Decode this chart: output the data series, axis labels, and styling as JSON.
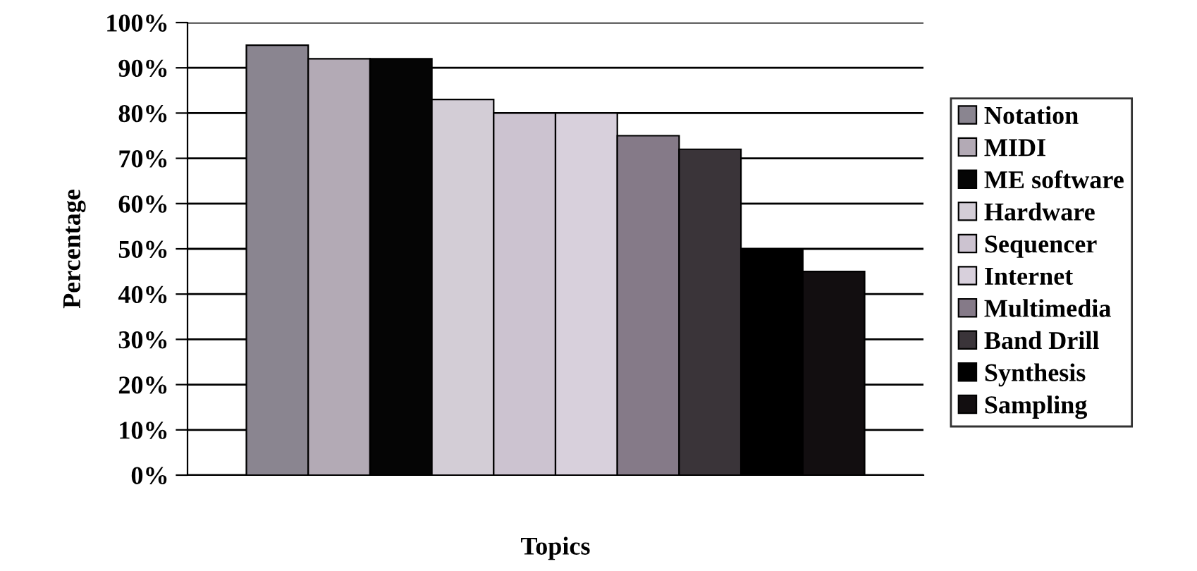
{
  "chart_data": {
    "type": "bar",
    "xlabel": "Topics",
    "ylabel": "Percentage",
    "categories": [
      null
    ],
    "series": [
      {
        "name": "Notation",
        "color": "#8a8590",
        "values": [
          95
        ]
      },
      {
        "name": "MIDI",
        "color": "#b3aab5",
        "values": [
          92
        ]
      },
      {
        "name": "ME software",
        "color": "#050505",
        "values": [
          92
        ]
      },
      {
        "name": "Hardware",
        "color": "#d3cdd6",
        "values": [
          83
        ]
      },
      {
        "name": "Sequencer",
        "color": "#ccc3d0",
        "values": [
          80
        ]
      },
      {
        "name": "Internet",
        "color": "#d8d0dc",
        "values": [
          80
        ]
      },
      {
        "name": "Multimedia",
        "color": "#857a88",
        "values": [
          75
        ]
      },
      {
        "name": "Band Drill",
        "color": "#3a3439",
        "values": [
          72
        ]
      },
      {
        "name": "Synthesis",
        "color": "#000000",
        "values": [
          50
        ]
      },
      {
        "name": "Sampling",
        "color": "#120e10",
        "values": [
          45
        ]
      }
    ],
    "ylim": [
      0,
      100
    ],
    "yticks": [
      {
        "value": 0,
        "label": "0%"
      },
      {
        "value": 10,
        "label": "10%"
      },
      {
        "value": 20,
        "label": "20%"
      },
      {
        "value": 30,
        "label": "30%"
      },
      {
        "value": 40,
        "label": "40%"
      },
      {
        "value": 50,
        "label": "50%"
      },
      {
        "value": 60,
        "label": "60%"
      },
      {
        "value": 70,
        "label": "70%"
      },
      {
        "value": 80,
        "label": "80%"
      },
      {
        "value": 90,
        "label": "90%"
      },
      {
        "value": 100,
        "label": "100%"
      }
    ],
    "grid": "y",
    "legend": "right"
  }
}
